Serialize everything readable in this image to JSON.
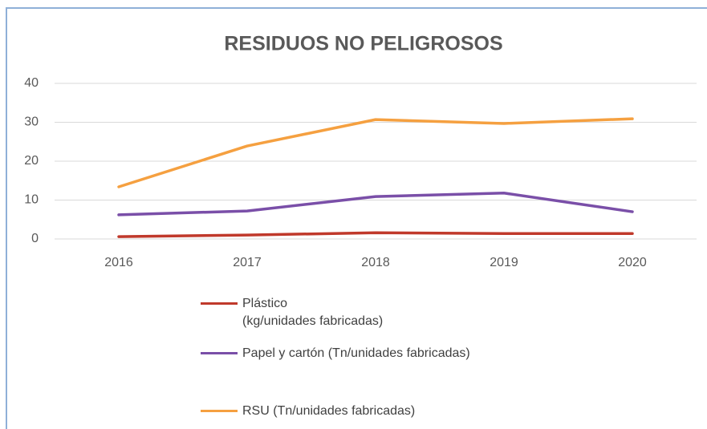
{
  "chart_data": {
    "type": "line",
    "title": "RESIDUOS NO PELIGROSOS",
    "categories": [
      "2016",
      "2017",
      "2018",
      "2019",
      "2020"
    ],
    "series": [
      {
        "name": "Plástico\n(kg/unidades fabricadas)",
        "color": "#c0392b",
        "values": [
          0.6,
          1.0,
          1.6,
          1.4,
          1.4
        ]
      },
      {
        "name": "Papel y cartón (Tn/unidades fabricadas)",
        "color": "#7a4fa8",
        "values": [
          6.2,
          7.2,
          10.9,
          11.8,
          7.0
        ]
      },
      {
        "name": "RSU (Tn/unidades fabricadas)",
        "color": "#f5a040",
        "values": [
          13.4,
          23.9,
          30.7,
          29.7,
          30.9
        ]
      }
    ],
    "ylim": [
      0,
      40
    ],
    "yticks": [
      0,
      10,
      20,
      30,
      40
    ],
    "grid": true
  }
}
